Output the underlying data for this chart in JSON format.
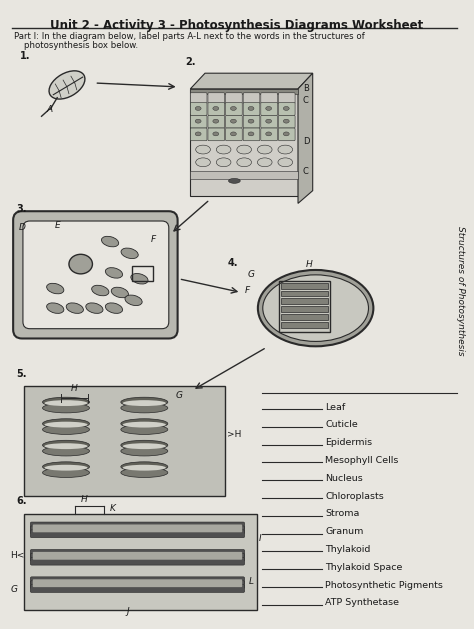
{
  "title": "Unit 2 - Activity 3 - Photosynthesis Diagrams Worksheet",
  "subtitle_line1": "Part I: In the diagram below, label parts A-L next to the words in the structures of",
  "subtitle_line2": "photosynthesis box below.",
  "side_text": "Structures of Photosynthesis",
  "structure_list": [
    "Leaf",
    "Cuticle",
    "Epidermis",
    "Mesophyll Cells",
    "Nucleus",
    "Chloroplasts",
    "Stroma",
    "Granum",
    "Thylakoid",
    "Thylakoid Space",
    "Photosynthetic Pigments",
    "ATP Synthetase"
  ],
  "paper_color": "#e8e6e0",
  "line_color": "#2a2a2a",
  "text_color": "#1a1a1a"
}
